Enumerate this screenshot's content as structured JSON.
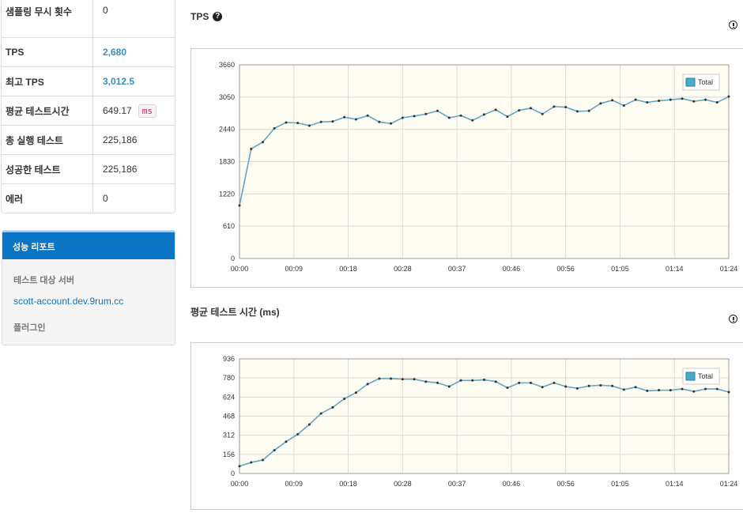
{
  "stats": [
    {
      "label": "샘플링 무시 횟수",
      "value": "0",
      "tall": true
    },
    {
      "label": "TPS",
      "value": "2,680",
      "accent": true
    },
    {
      "label": "최고 TPS",
      "value": "3,012.5",
      "accent": true
    },
    {
      "label": "평균 테스트시간",
      "value": "649.17",
      "unit": "ms"
    },
    {
      "label": "총 실행 테스트",
      "value": "225,186"
    },
    {
      "label": "성공한 테스트",
      "value": "225,186"
    },
    {
      "label": "에러",
      "value": "0"
    }
  ],
  "report": {
    "title": "성능 리포트",
    "target_label": "테스트 대상 서버",
    "target_server": "scott-account.dev.9rum.cc",
    "plugin_label": "플러그인"
  },
  "colors": {
    "accent": "#0a74c5",
    "line": "#5fa7c6",
    "plot_bg": "#fffdf2"
  },
  "chart_data": [
    {
      "type": "line",
      "title": "TPS",
      "ylim": [
        0,
        3660
      ],
      "yticks": [
        0,
        610,
        1220,
        1830,
        2440,
        3050,
        3660
      ],
      "xticks": [
        "00:00",
        "00:09",
        "00:18",
        "00:28",
        "00:37",
        "00:46",
        "00:56",
        "01:05",
        "01:14",
        "01:24"
      ],
      "xrange": [
        0,
        45
      ],
      "legend": "top-right",
      "grid": true,
      "series": [
        {
          "name": "Total",
          "values": [
            1000,
            2070,
            2200,
            2460,
            2570,
            2560,
            2510,
            2580,
            2590,
            2670,
            2630,
            2700,
            2580,
            2550,
            2660,
            2690,
            2730,
            2790,
            2660,
            2700,
            2610,
            2720,
            2810,
            2680,
            2800,
            2840,
            2730,
            2870,
            2860,
            2780,
            2790,
            2930,
            2990,
            2890,
            3000,
            2950,
            2980,
            3000,
            3020,
            2970,
            3000,
            2950,
            3060
          ]
        }
      ]
    },
    {
      "type": "line",
      "title": "평균 테스트 시간 (ms)",
      "ylim": [
        0,
        936
      ],
      "yticks": [
        0,
        156,
        312,
        468,
        624,
        780,
        936
      ],
      "xticks": [
        "00:00",
        "00:09",
        "00:18",
        "00:28",
        "00:37",
        "00:46",
        "00:56",
        "01:05",
        "01:14",
        "01:24"
      ],
      "xrange": [
        0,
        45
      ],
      "legend": "top-right",
      "grid": true,
      "series": [
        {
          "name": "Total",
          "values": [
            60,
            90,
            110,
            190,
            260,
            320,
            400,
            490,
            540,
            610,
            660,
            730,
            775,
            775,
            770,
            770,
            750,
            740,
            710,
            760,
            760,
            765,
            750,
            700,
            740,
            740,
            705,
            740,
            710,
            695,
            715,
            720,
            715,
            685,
            705,
            675,
            680,
            680,
            690,
            670,
            690,
            690,
            665
          ]
        }
      ]
    }
  ]
}
